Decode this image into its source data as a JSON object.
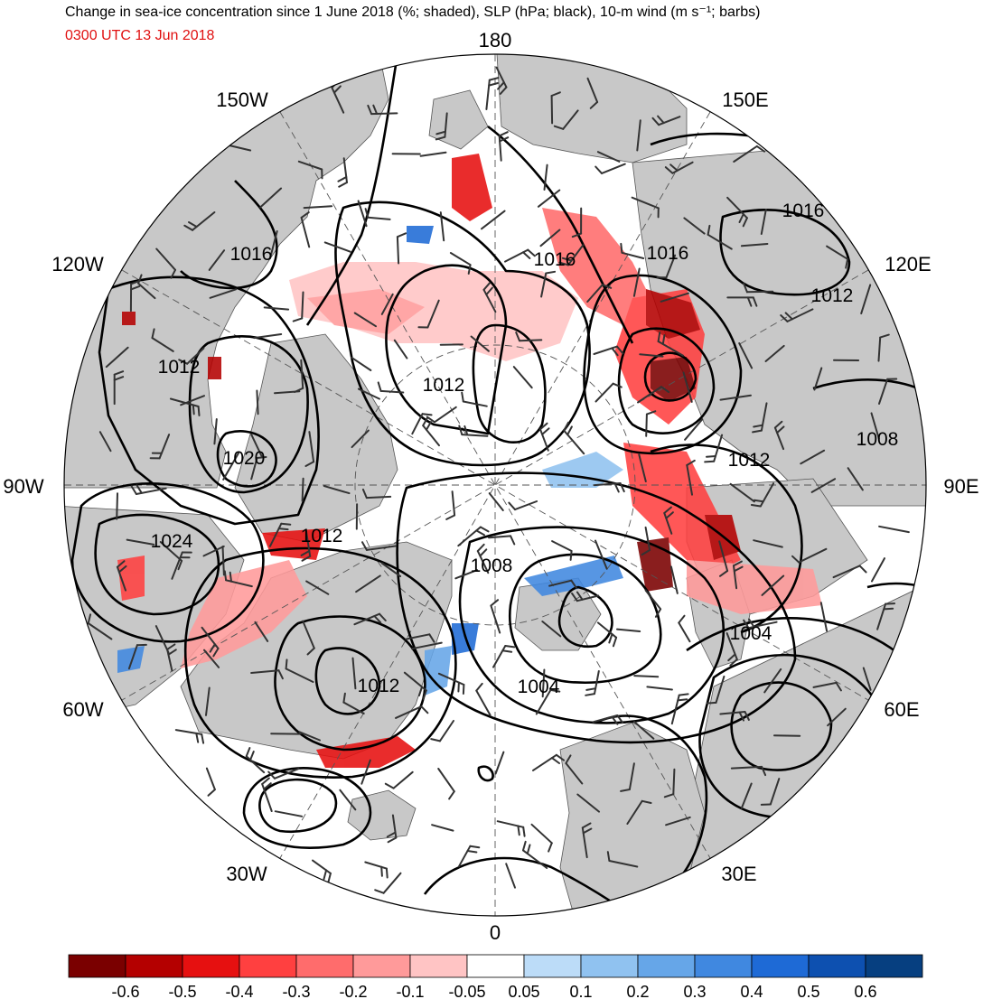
{
  "header": {
    "title": "Change in sea-ice concentration since 1 June 2018 (%; shaded), SLP (hPa; black), 10-m wind (m s⁻¹; barbs)",
    "valid_time": "0300 UTC 13 Jun 2018"
  },
  "map": {
    "projection": "north-polar-stereographic",
    "longitude_labels": {
      "lon_180": "180",
      "lon_150W": "150W",
      "lon_150E": "150E",
      "lon_120W": "120W",
      "lon_120E": "120E",
      "lon_90W": "90W",
      "lon_90E": "90E",
      "lon_60W": "60W",
      "lon_60E": "60E",
      "lon_30W": "30W",
      "lon_30E": "30E",
      "lon_0": "0"
    },
    "slp_contour_labels": {
      "c1": "1016",
      "c2": "1016",
      "c3": "1016",
      "c4": "1016",
      "c5": "1012",
      "c6": "1012",
      "c7": "1012",
      "c8": "1012",
      "c9": "1012",
      "c10": "1012",
      "c11": "1020",
      "c12": "1024",
      "c13": "1008",
      "c14": "1008",
      "c15": "1004",
      "c16": "1004"
    },
    "colors": {
      "land": "#c8c8c8",
      "ocean": "#ffffff",
      "contour": "#000000",
      "barb": "#333333"
    }
  },
  "colorbar": {
    "colors": [
      "#7a0000",
      "#b40000",
      "#e61010",
      "#ff4040",
      "#ff6c6c",
      "#ff9a9a",
      "#ffc4c4",
      "#ffffff",
      "#bcdcf8",
      "#90c2f0",
      "#66a6e8",
      "#4088e0",
      "#1e6ad6",
      "#0d50b0",
      "#063f80"
    ],
    "tick_labels": [
      "-0.6",
      "-0.5",
      "-0.4",
      "-0.3",
      "-0.2",
      "-0.1",
      "-0.05",
      "0.05",
      "0.1",
      "0.2",
      "0.3",
      "0.4",
      "0.5",
      "0.6"
    ]
  }
}
